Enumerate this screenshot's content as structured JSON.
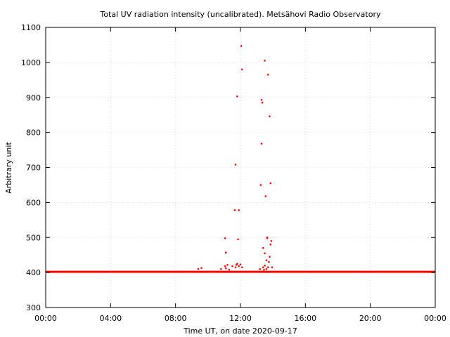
{
  "chart_data": {
    "type": "scatter",
    "title": "Total UV radiation intensity (uncalibrated). Metsähovi Radio Observatory",
    "xlabel": "Time UT, on date 2020-09-17",
    "ylabel": "Arbitrary unit",
    "xlim": [
      0,
      24
    ],
    "ylim": [
      300,
      1100
    ],
    "x_ticks": [
      0,
      4,
      8,
      12,
      16,
      20,
      24
    ],
    "x_tick_labels": [
      "00:00",
      "04:00",
      "08:00",
      "12:00",
      "16:00",
      "20:00",
      "00:00"
    ],
    "y_ticks": [
      300,
      400,
      500,
      600,
      700,
      800,
      900,
      1000,
      1100
    ],
    "y_tick_labels": [
      "300",
      "400",
      "500",
      "600",
      "700",
      "800",
      "900",
      "1000",
      "1100"
    ],
    "grid": true,
    "color": "#ff0000",
    "baseline": {
      "value": 402,
      "x_range": [
        0,
        24
      ]
    },
    "series": [
      {
        "x": [
          9.4,
          9.6,
          10.8,
          11.05,
          11.1,
          11.2,
          11.3,
          11.5,
          11.7,
          11.75,
          11.8,
          11.9,
          12.0,
          12.1,
          11.05,
          11.1,
          11.65,
          11.7,
          11.8,
          11.85,
          11.9,
          12.05,
          12.1,
          13.2,
          13.25,
          13.3,
          13.3,
          13.35,
          13.4,
          13.4,
          13.45,
          13.5,
          13.5,
          13.55,
          13.6,
          13.65,
          13.7,
          13.75,
          13.8,
          13.85,
          13.9,
          13.5,
          13.6,
          13.65,
          13.7,
          13.8,
          13.85,
          13.95
        ],
        "y": [
          410,
          413,
          410,
          418,
          412,
          422,
          408,
          418,
          415,
          422,
          425,
          418,
          423,
          415,
          498,
          457,
          578,
          708,
          903,
          495,
          578,
          1047,
          980,
          410,
          650,
          893,
          768,
          885,
          470,
          415,
          408,
          420,
          455,
          618,
          410,
          498,
          415,
          430,
          846,
          655,
          490,
          1005,
          435,
          500,
          965,
          445,
          480,
          415
        ]
      }
    ]
  }
}
